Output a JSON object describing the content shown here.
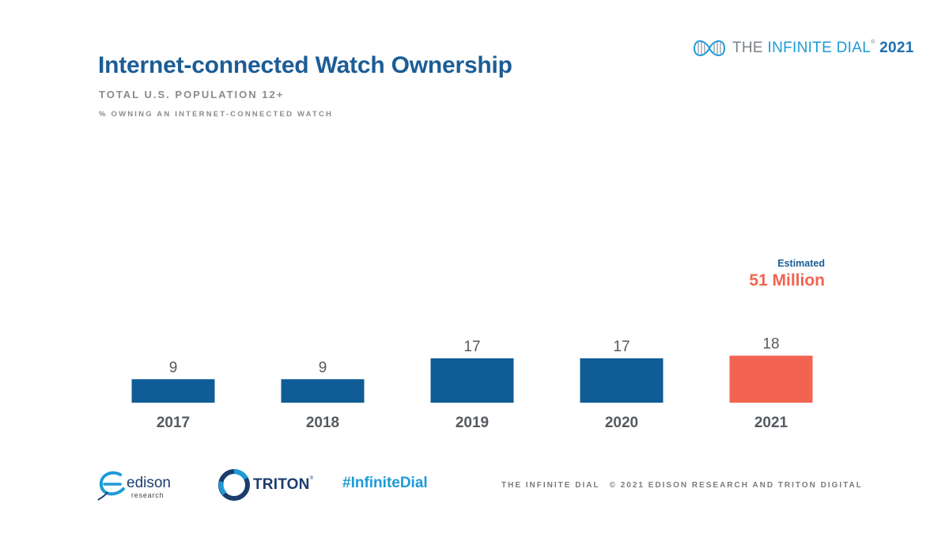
{
  "brand": {
    "the": "THE ",
    "infinite": "INFINITE",
    "dial": " DIAL",
    "reg": "®",
    "year": " 2021"
  },
  "title": "Internet-connected Watch Ownership",
  "subtitle": "TOTAL U.S. POPULATION 12+",
  "measure": "% OWNING AN INTERNET-CONNECTED WATCH",
  "estimate": {
    "label": "Estimated",
    "value": "51 Million"
  },
  "chart_data": {
    "type": "bar",
    "title": "Internet-connected Watch Ownership",
    "subtitle": "TOTAL U.S. POPULATION 12+",
    "ylabel": "% OWNING AN INTERNET-CONNECTED WATCH",
    "xlabel": "",
    "categories": [
      "2017",
      "2018",
      "2019",
      "2020",
      "2021"
    ],
    "values": [
      9,
      9,
      17,
      17,
      18
    ],
    "ylim": [
      0,
      100
    ],
    "grid": false,
    "colors": [
      "#0f5c96",
      "#0f5c96",
      "#0f5c96",
      "#0f5c96",
      "#f26451"
    ],
    "annotation": {
      "category": "2021",
      "label": "Estimated",
      "value": "51 Million"
    }
  },
  "footer": {
    "edison": "edison",
    "edison_sub": "research",
    "triton": "TRITON",
    "triton_reg": "®",
    "hashtag": "#InfiniteDial",
    "credit_left": "THE INFINITE DIAL",
    "credit_right": "© 2021 EDISON RESEARCH AND TRITON DIGITAL"
  },
  "colors": {
    "bar": "#0f5c96",
    "highlight": "#f26451",
    "title": "#1b5d96",
    "accent": "#1d9bd7"
  }
}
